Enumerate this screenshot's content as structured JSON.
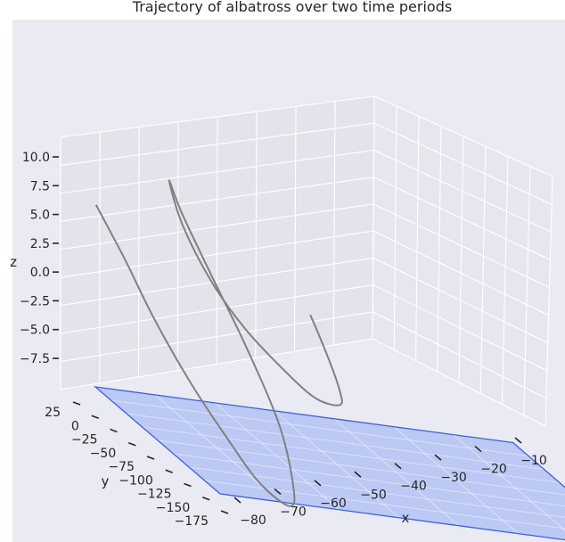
{
  "chart_data": {
    "type": "line",
    "projection": "3d",
    "title": "Trajectory of albatross over two time periods",
    "xlabel": "x",
    "ylabel": "y",
    "zlabel": "z",
    "x_ticks": [
      "−80",
      "−70",
      "−60",
      "−50",
      "−40",
      "−30",
      "−20",
      "−10"
    ],
    "y_ticks": [
      "25",
      "0",
      "−25",
      "−50",
      "−75",
      "−100",
      "−125",
      "−150",
      "−175"
    ],
    "z_ticks": [
      "10.0",
      "7.5",
      "5.0",
      "2.5",
      "0.0",
      "−2.5",
      "−5.0",
      "−7.5"
    ],
    "grid": true,
    "background_color": "#EAEAF2",
    "series": [
      {
        "color": "#808080",
        "points": [
          [
            -79,
            25,
            6.8
          ],
          [
            -77,
            0,
            3.2
          ],
          [
            -75,
            -25,
            -0.8
          ],
          [
            -72,
            -50,
            -5.0
          ],
          [
            -68,
            -70,
            -9.0
          ],
          [
            -64,
            -85,
            -12.3
          ],
          [
            -60,
            -95,
            -13.6
          ],
          [
            -58,
            -80,
            -12.0
          ],
          [
            -57,
            -50,
            -8.0
          ],
          [
            -58,
            -10,
            -3.0
          ],
          [
            -60,
            25,
            1.8
          ],
          [
            -62,
            50,
            6.0
          ],
          [
            -63,
            60,
            8.5
          ],
          [
            -62,
            50,
            5.0
          ],
          [
            -59,
            35,
            0.8
          ],
          [
            -55,
            20,
            -2.6
          ],
          [
            -50,
            5,
            -5.4
          ],
          [
            -46,
            -5,
            -7.1
          ],
          [
            -42,
            -5,
            -7.4
          ],
          [
            -41,
            5,
            -6.4
          ],
          [
            -42,
            15,
            -3.6
          ],
          [
            -44,
            20,
            -0.5
          ]
        ]
      }
    ],
    "plane": {
      "z": -10,
      "xlim": [
        -80,
        -10
      ],
      "ylim": [
        -175,
        25
      ],
      "fill_color": "#B4C3F5",
      "edge_color": "#3D63D9"
    }
  }
}
